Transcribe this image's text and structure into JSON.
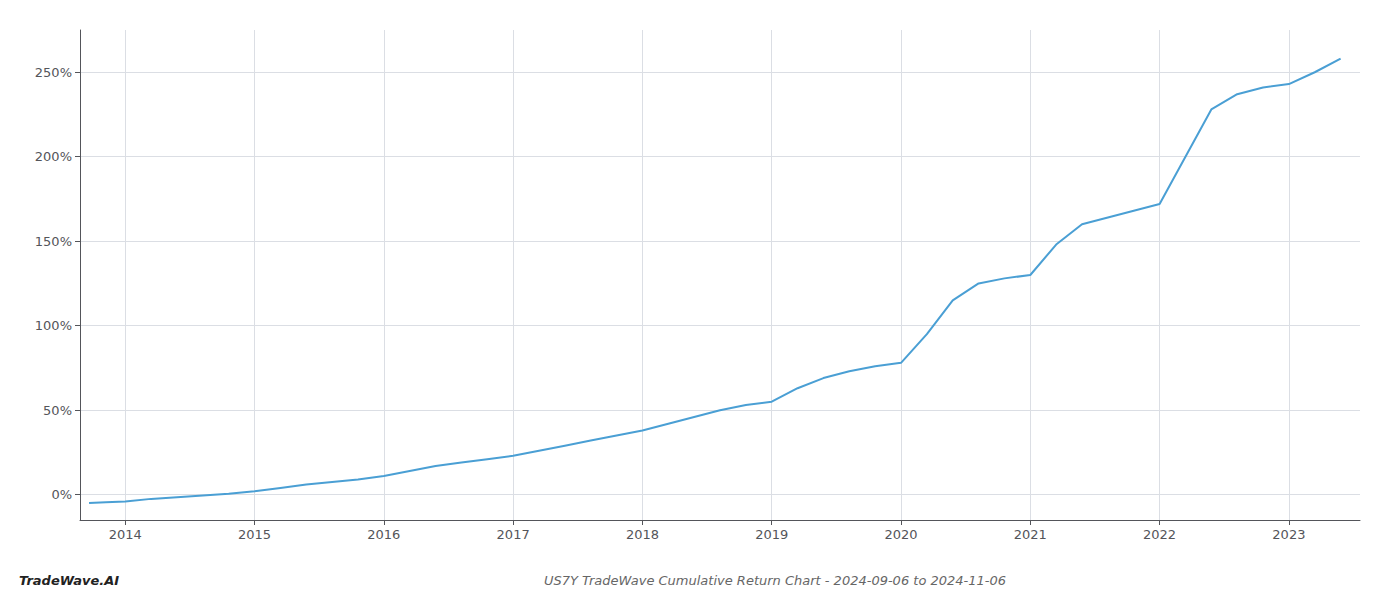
{
  "chart_data": {
    "type": "line",
    "title": "US7Y TradeWave Cumulative Return Chart - 2024-09-06 to 2024-11-06",
    "annotations": [
      "TradeWave.AI"
    ],
    "color": "#4a9fd4",
    "grid": true,
    "x": [
      2013.72,
      2013.85,
      2014.0,
      2014.2,
      2014.4,
      2014.6,
      2014.8,
      2015.0,
      2015.2,
      2015.4,
      2015.6,
      2015.8,
      2016.0,
      2016.2,
      2016.4,
      2016.6,
      2016.8,
      2017.0,
      2017.2,
      2017.4,
      2017.6,
      2017.8,
      2018.0,
      2018.2,
      2018.4,
      2018.6,
      2018.8,
      2019.0,
      2019.2,
      2019.4,
      2019.6,
      2019.8,
      2020.0,
      2020.2,
      2020.4,
      2020.6,
      2020.8,
      2021.0,
      2021.2,
      2021.4,
      2021.6,
      2021.8,
      2022.0,
      2022.2,
      2022.4,
      2022.6,
      2022.8,
      2023.0,
      2023.2,
      2023.4
    ],
    "values": [
      -5,
      -4.5,
      -4,
      -2.5,
      -1.5,
      -0.5,
      0.5,
      2,
      4,
      6,
      7.5,
      9,
      11,
      14,
      17,
      19,
      21,
      23,
      26,
      29,
      32,
      35,
      38,
      42,
      46,
      50,
      53,
      55,
      63,
      69,
      73,
      76,
      78,
      95,
      115,
      125,
      128,
      130,
      148,
      160,
      164,
      168,
      172,
      200,
      228,
      237,
      241,
      243,
      250,
      258
    ],
    "xlim": [
      2013.65,
      2023.55
    ],
    "xticks": [
      2014,
      2015,
      2016,
      2017,
      2018,
      2019,
      2020,
      2021,
      2022,
      2023
    ],
    "ylim": [
      -15,
      275
    ],
    "yticks": [
      {
        "value": 0,
        "label": "0%"
      },
      {
        "value": 50,
        "label": "50%"
      },
      {
        "value": 100,
        "label": "100%"
      },
      {
        "value": 150,
        "label": "150%"
      },
      {
        "value": 200,
        "label": "200%"
      },
      {
        "value": 250,
        "label": "250%"
      }
    ]
  }
}
